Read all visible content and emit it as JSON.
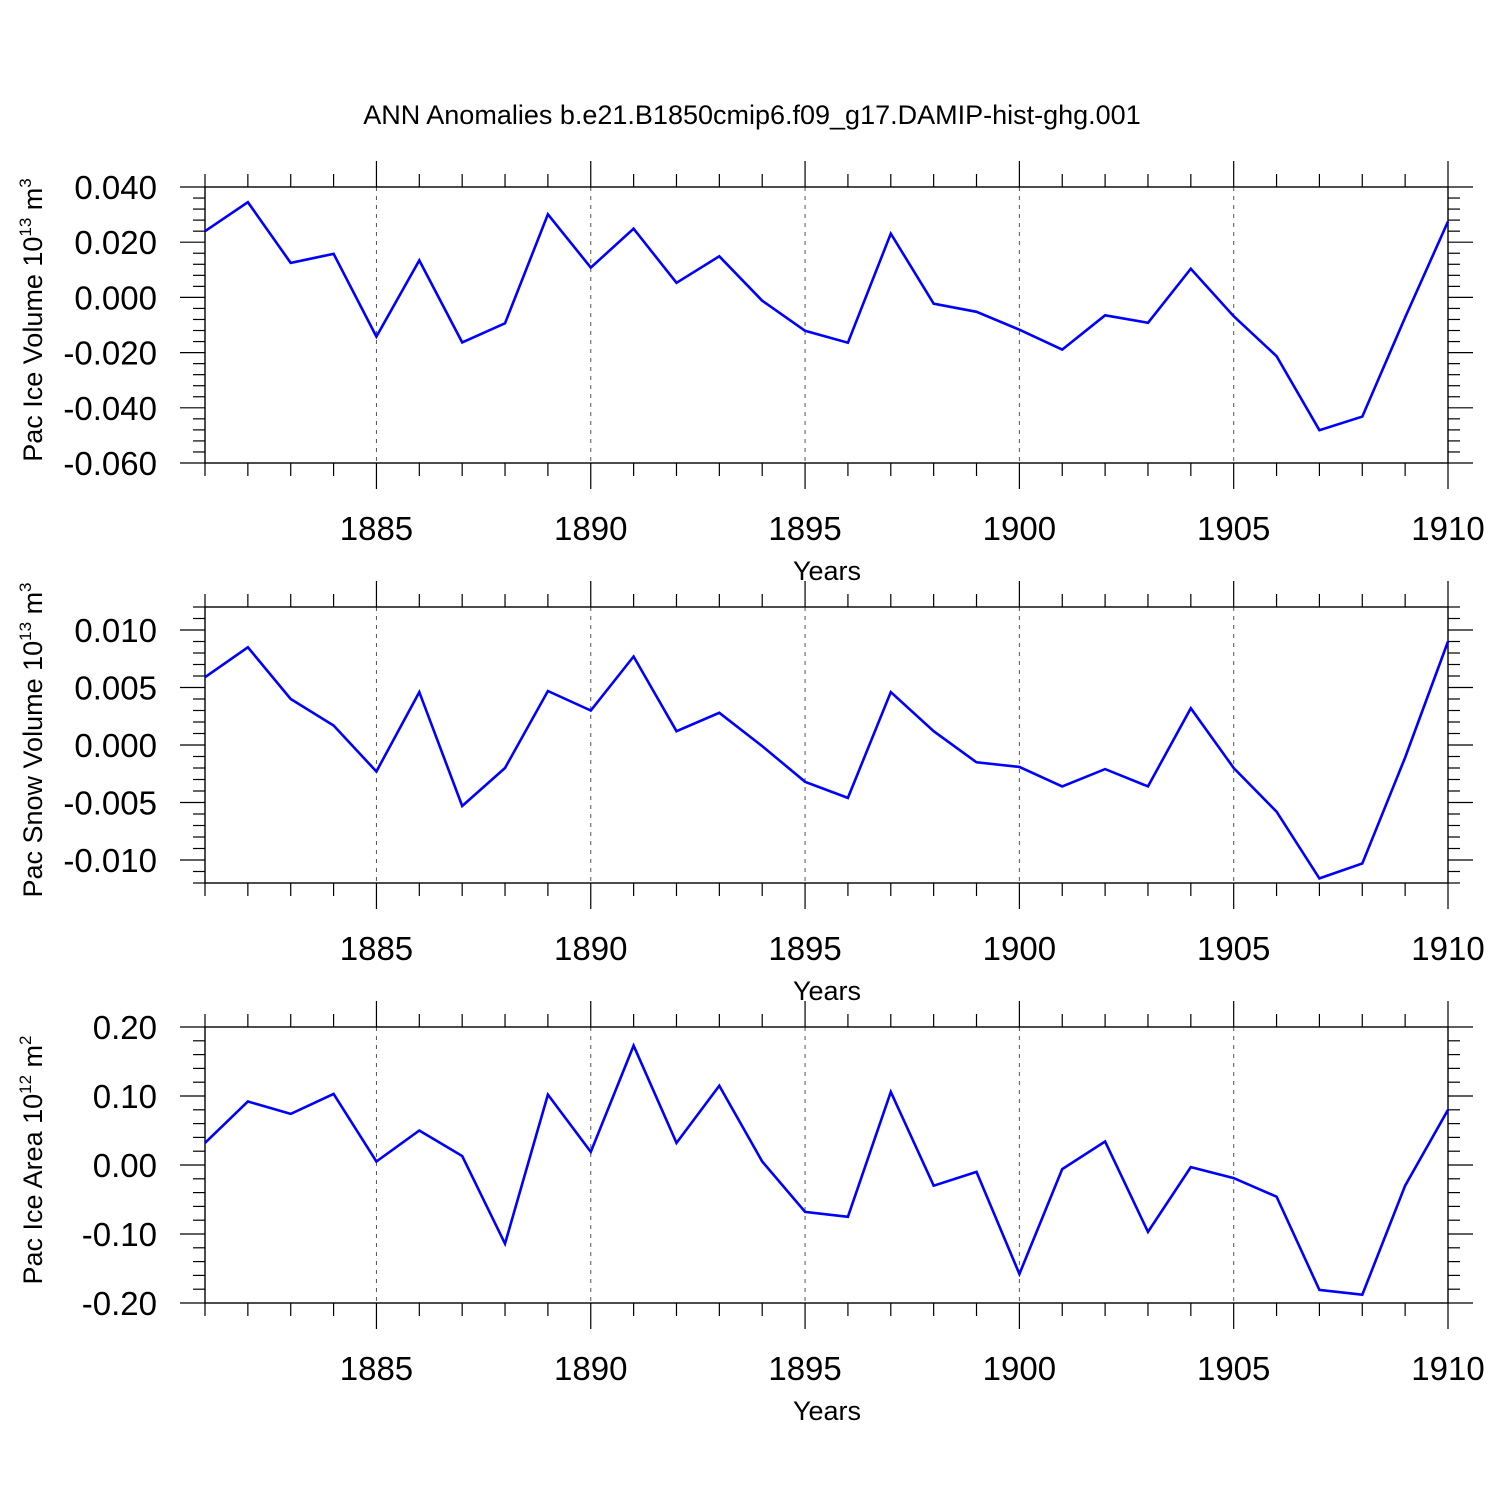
{
  "figure": {
    "title": "ANN Anomalies b.e21.B1850cmip6.f09_g17.DAMIP-hist-ghg.001"
  },
  "chart_data": [
    {
      "type": "line",
      "xlabel": "Years",
      "ylabel": {
        "text": "Pac Ice Volume 10",
        "exponent": "13",
        "unit": "m",
        "unit_exponent": "3"
      },
      "xlim": [
        1881,
        1910
      ],
      "ylim": [
        -0.06,
        0.04
      ],
      "xticks": [
        "1885",
        "1890",
        "1895",
        "1900",
        "1905",
        "1910"
      ],
      "yticks": [
        "0.040",
        "0.020",
        "0.000",
        "-0.020",
        "-0.040",
        "-0.060"
      ],
      "ytick_values": [
        0.04,
        0.02,
        0.0,
        -0.02,
        -0.04,
        -0.06
      ],
      "color": "#0000ff",
      "x": [
        1881,
        1882,
        1883,
        1884,
        1885,
        1886,
        1887,
        1888,
        1889,
        1890,
        1891,
        1892,
        1893,
        1894,
        1895,
        1896,
        1897,
        1898,
        1899,
        1900,
        1901,
        1902,
        1903,
        1904,
        1905,
        1906,
        1907,
        1908,
        1909,
        1910
      ],
      "values": [
        0.024,
        0.0345,
        0.0125,
        0.0158,
        -0.0142,
        0.0134,
        -0.0163,
        -0.0094,
        0.0301,
        0.0108,
        0.0249,
        0.0053,
        0.0149,
        -0.0012,
        -0.0121,
        -0.0164,
        0.0231,
        -0.0023,
        -0.0052,
        -0.0117,
        -0.0189,
        -0.0065,
        -0.0092,
        0.0104,
        -0.0068,
        -0.0213,
        -0.0481,
        -0.0432,
        -0.0073,
        0.0275
      ]
    },
    {
      "type": "line",
      "xlabel": "Years",
      "ylabel": {
        "text": "Pac Snow Volume 10",
        "exponent": "13",
        "unit": "m",
        "unit_exponent": "3"
      },
      "xlim": [
        1881,
        1910
      ],
      "ylim": [
        -0.012,
        0.012
      ],
      "xticks": [
        "1885",
        "1890",
        "1895",
        "1900",
        "1905",
        "1910"
      ],
      "yticks": [
        "0.010",
        "0.005",
        "0.000",
        "-0.005",
        "-0.010"
      ],
      "ytick_values": [
        0.01,
        0.005,
        0.0,
        -0.005,
        -0.01
      ],
      "color": "#0000ff",
      "x": [
        1881,
        1882,
        1883,
        1884,
        1885,
        1886,
        1887,
        1888,
        1889,
        1890,
        1891,
        1892,
        1893,
        1894,
        1895,
        1896,
        1897,
        1898,
        1899,
        1900,
        1901,
        1902,
        1903,
        1904,
        1905,
        1906,
        1907,
        1908,
        1909,
        1910
      ],
      "values": [
        0.0059,
        0.0085,
        0.004,
        0.0017,
        -0.0023,
        0.0046,
        -0.0053,
        -0.002,
        0.0047,
        0.003,
        0.0077,
        0.0012,
        0.0028,
        -0.0001,
        -0.0032,
        -0.0046,
        0.0046,
        0.0012,
        -0.0015,
        -0.0019,
        -0.0036,
        -0.0021,
        -0.0036,
        0.0032,
        -0.002,
        -0.0058,
        -0.0116,
        -0.0103,
        -0.0011,
        0.009
      ]
    },
    {
      "type": "line",
      "xlabel": "Years",
      "ylabel": {
        "text": "Pac Ice Area 10",
        "exponent": "12",
        "unit": "m",
        "unit_exponent": "2"
      },
      "xlim": [
        1881,
        1910
      ],
      "ylim": [
        -0.2,
        0.2
      ],
      "xticks": [
        "1885",
        "1890",
        "1895",
        "1900",
        "1905",
        "1910"
      ],
      "yticks": [
        "0.20",
        "0.10",
        "0.00",
        "-0.10",
        "-0.20"
      ],
      "ytick_values": [
        0.2,
        0.1,
        0.0,
        -0.1,
        -0.2
      ],
      "color": "#0000ff",
      "x": [
        1881,
        1882,
        1883,
        1884,
        1885,
        1886,
        1887,
        1888,
        1889,
        1890,
        1891,
        1892,
        1893,
        1894,
        1895,
        1896,
        1897,
        1898,
        1899,
        1900,
        1901,
        1902,
        1903,
        1904,
        1905,
        1906,
        1907,
        1908,
        1909,
        1910
      ],
      "values": [
        0.032,
        0.092,
        0.074,
        0.103,
        0.005,
        0.05,
        0.013,
        -0.114,
        0.102,
        0.019,
        0.173,
        0.032,
        0.115,
        0.005,
        -0.068,
        -0.075,
        0.106,
        -0.03,
        -0.01,
        -0.158,
        -0.006,
        0.034,
        -0.097,
        -0.003,
        -0.019,
        -0.046,
        -0.181,
        -0.188,
        -0.03,
        0.08
      ]
    }
  ]
}
